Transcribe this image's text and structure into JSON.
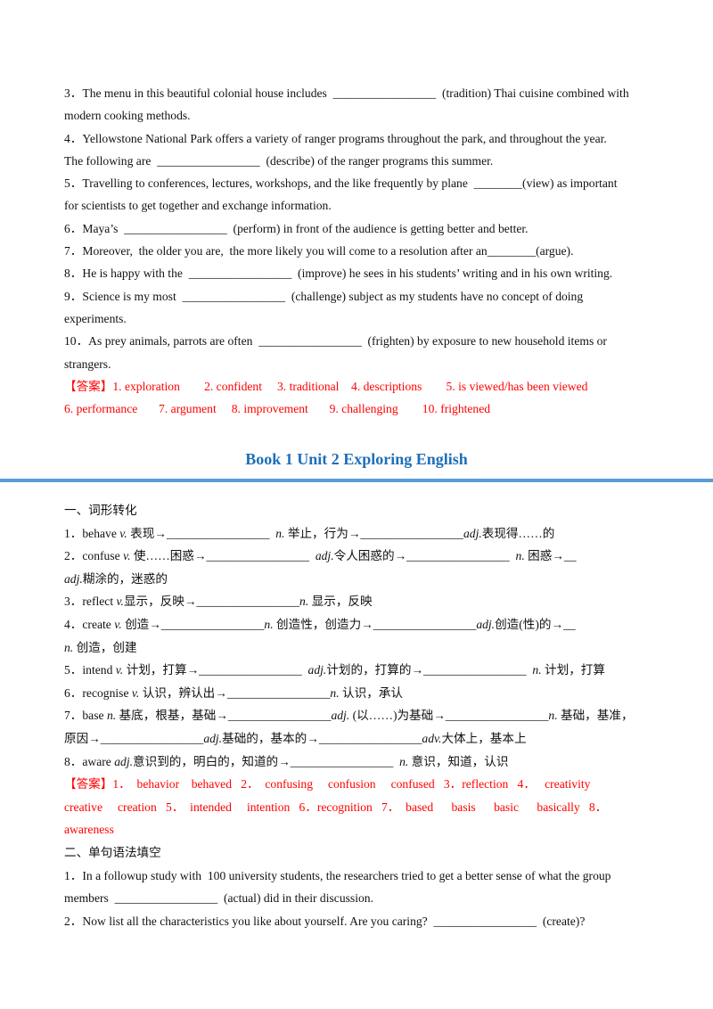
{
  "colors": {
    "answer": "#ff0000",
    "title": "#1f6fb8",
    "rule": "#5b9bd5"
  },
  "title": "Book  1  Unit 2 Exploring English",
  "blocks": [
    {
      "lines": [
        {
          "segs": [
            {
              "text": "3．The menu in this beautiful colonial house includes  _________________  (tradition) Thai cuisine combined with"
            }
          ]
        },
        {
          "segs": [
            {
              "text": "modern cooking methods."
            }
          ]
        },
        {
          "segs": [
            {
              "text": "4．Yellowstone National Park offers a variety of ranger programs throughout the park, and throughout the year."
            }
          ]
        },
        {
          "segs": [
            {
              "text": "The following are  _________________  (describe) of the ranger programs this summer."
            }
          ]
        },
        {
          "segs": [
            {
              "text": "5．Travelling to conferences, lectures, workshops, and the like frequently by plane  ________(view) as important"
            }
          ]
        },
        {
          "segs": [
            {
              "text": "for scientists to get together and exchange information."
            }
          ]
        },
        {
          "segs": [
            {
              "text": "6．Maya’s  _________________  (perform) in front of the audience is getting better and better."
            }
          ]
        },
        {
          "segs": [
            {
              "text": "7．Moreover,  the older you are,  the more likely you will come to a resolution after an________(argue)."
            }
          ]
        },
        {
          "segs": [
            {
              "text": "8．He is happy with the  _________________  (improve) he sees in his students’ writing and in his own writing."
            }
          ]
        },
        {
          "segs": [
            {
              "text": "9．Science is my most  _________________  (challenge) subject as my students have no concept of doing"
            }
          ]
        },
        {
          "segs": [
            {
              "text": "experiments."
            }
          ]
        },
        {
          "segs": [
            {
              "text": "10．As prey animals, parrots are often  _________________  (frighten) by exposure to new household items or"
            }
          ]
        },
        {
          "segs": [
            {
              "text": "strangers."
            }
          ]
        },
        {
          "answer": true,
          "segs": [
            {
              "text": "【答案】1. exploration        2. confident     3. traditional    4. descriptions        5. is viewed/has been viewed"
            }
          ]
        },
        {
          "answer": true,
          "segs": [
            {
              "text": "6. performance       7. argument     8. improvement       9. challenging        10. frightened"
            }
          ]
        }
      ]
    },
    {
      "lines": [
        {
          "segs": [
            {
              "text": "一、词形转化"
            }
          ]
        },
        {
          "segs": [
            {
              "text": "1．behave "
            },
            {
              "text": "v.",
              "em": true
            },
            {
              "text": " 表现→_________________  "
            },
            {
              "text": "n.",
              "em": true
            },
            {
              "text": " 举止，行为→_________________"
            },
            {
              "text": "adj.",
              "em": true
            },
            {
              "text": "表现得……的"
            }
          ]
        },
        {
          "segs": [
            {
              "text": "2．confuse "
            },
            {
              "text": "v.",
              "em": true
            },
            {
              "text": " 使……困惑→_________________  "
            },
            {
              "text": "adj.",
              "em": true
            },
            {
              "text": "令人困惑的→_________________  "
            },
            {
              "text": "n.",
              "em": true
            },
            {
              "text": " 困惑→__"
            }
          ]
        },
        {
          "segs": [
            {
              "text": "adj.",
              "em": true
            },
            {
              "text": "糊涂的，迷惑的"
            }
          ]
        },
        {
          "segs": [
            {
              "text": "3．reflect "
            },
            {
              "text": "v.",
              "em": true
            },
            {
              "text": "显示，反映→_________________"
            },
            {
              "text": "n.",
              "em": true
            },
            {
              "text": " 显示，反映"
            }
          ]
        },
        {
          "segs": [
            {
              "text": "4．create "
            },
            {
              "text": "v.",
              "em": true
            },
            {
              "text": " 创造→_________________"
            },
            {
              "text": "n.",
              "em": true
            },
            {
              "text": " 创造性，创造力→_________________"
            },
            {
              "text": "adj.",
              "em": true
            },
            {
              "text": "创造(性)的→__"
            }
          ]
        },
        {
          "segs": [
            {
              "text": "n.",
              "em": true
            },
            {
              "text": " 创造，创建"
            }
          ]
        },
        {
          "segs": [
            {
              "text": "5．intend "
            },
            {
              "text": "v.",
              "em": true
            },
            {
              "text": " 计划，打算→_________________  "
            },
            {
              "text": "adj.",
              "em": true
            },
            {
              "text": "计划的，打算的→_________________  "
            },
            {
              "text": "n.",
              "em": true
            },
            {
              "text": " 计划，打算"
            }
          ]
        },
        {
          "segs": [
            {
              "text": "6．recognise "
            },
            {
              "text": "v.",
              "em": true
            },
            {
              "text": " 认识，辨认出→_________________"
            },
            {
              "text": "n.",
              "em": true
            },
            {
              "text": " 认识，承认"
            }
          ]
        },
        {
          "segs": [
            {
              "text": "7．base "
            },
            {
              "text": "n.",
              "em": true
            },
            {
              "text": " 基底，根基，基础→_________________"
            },
            {
              "text": "adj.",
              "em": true
            },
            {
              "text": " (以……)为基础→_________________"
            },
            {
              "text": "n.",
              "em": true
            },
            {
              "text": " 基础，基准，"
            }
          ]
        },
        {
          "segs": [
            {
              "text": "原因→_________________"
            },
            {
              "text": "adj.",
              "em": true
            },
            {
              "text": "基础的，基本的→_________________"
            },
            {
              "text": "adv.",
              "em": true
            },
            {
              "text": "大体上，基本上"
            }
          ]
        },
        {
          "segs": [
            {
              "text": "8．aware "
            },
            {
              "text": "adj.",
              "em": true
            },
            {
              "text": "意识到的，明白的，知道的→_________________  "
            },
            {
              "text": "n.",
              "em": true
            },
            {
              "text": " 意识，知道，认识"
            }
          ]
        },
        {
          "answer": true,
          "segs": [
            {
              "text": "【答案】1．  behavior    behaved   2．  confusing     confusion     confused   3．reflection   4．   creativity"
            }
          ]
        },
        {
          "answer": true,
          "segs": [
            {
              "text": "creative     creation   5．  intended     intention   6．recognition   7．  based      basis      basic      basically   8．"
            }
          ]
        },
        {
          "answer": true,
          "segs": [
            {
              "text": "awareness"
            }
          ]
        },
        {
          "segs": [
            {
              "text": "二、单句语法填空"
            }
          ]
        },
        {
          "segs": [
            {
              "text": "1．In a followup study with  100 university students, the researchers tried to get a better sense of what the group"
            }
          ]
        },
        {
          "segs": [
            {
              "text": "members  _________________  (actual) did in their discussion."
            }
          ]
        },
        {
          "segs": [
            {
              "text": "2．Now list all the characteristics you like about yourself. Are you caring?  _________________  (create)?"
            }
          ]
        }
      ]
    }
  ]
}
